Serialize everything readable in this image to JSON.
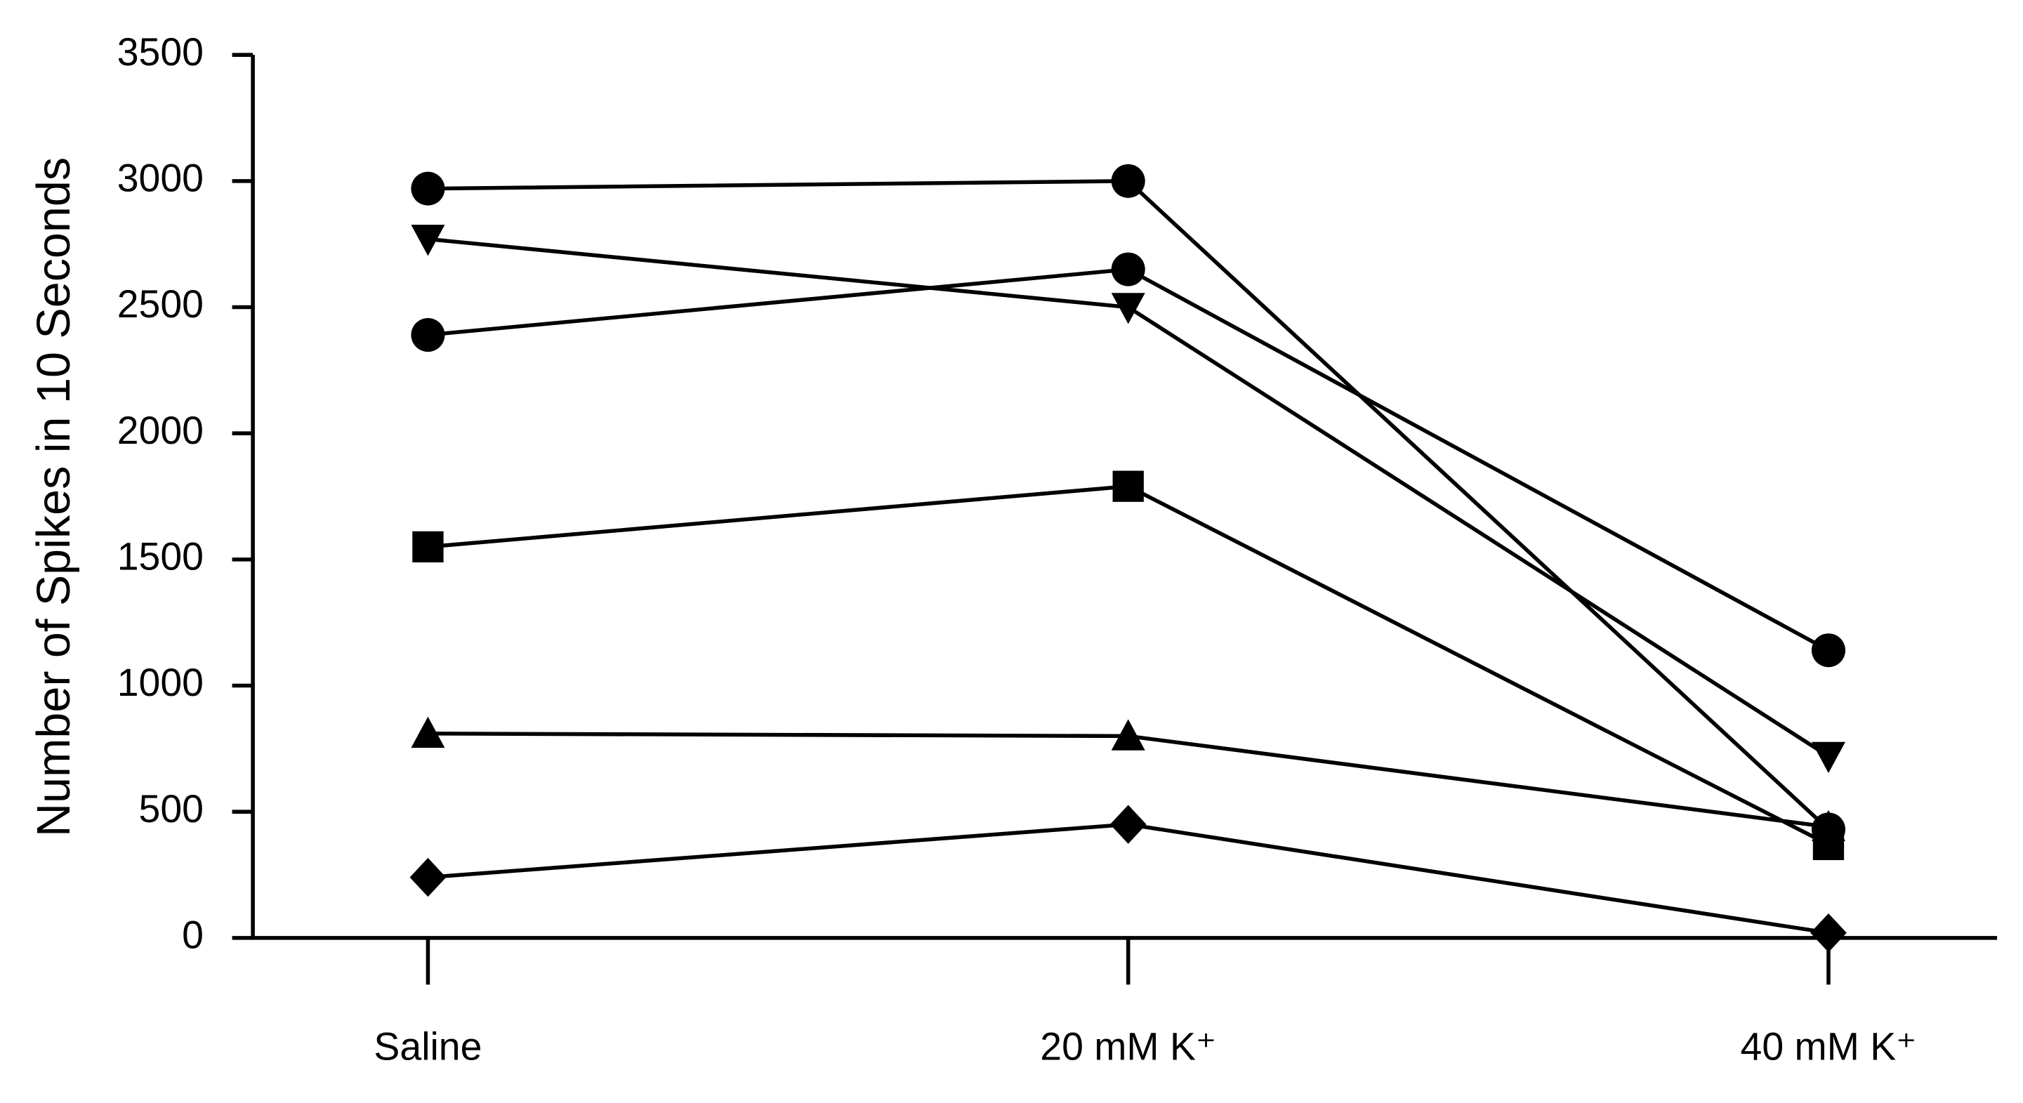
{
  "chart_data": {
    "type": "line",
    "ylabel": "Number of Spikes in 10 Seconds",
    "categories": [
      "Saline",
      "20 mM K⁺",
      "40 mM K⁺"
    ],
    "series": [
      {
        "marker": "circle",
        "color": "#000000",
        "values": [
          2970,
          3000,
          430
        ]
      },
      {
        "marker": "triangle-down",
        "color": "#000000",
        "values": [
          2770,
          2500,
          720
        ]
      },
      {
        "marker": "circle",
        "color": "#000000",
        "values": [
          2390,
          2650,
          1140
        ]
      },
      {
        "marker": "square",
        "color": "#000000",
        "values": [
          1550,
          1790,
          370
        ]
      },
      {
        "marker": "triangle-up",
        "color": "#000000",
        "values": [
          810,
          800,
          440
        ]
      },
      {
        "marker": "diamond",
        "color": "#000000",
        "values": [
          240,
          450,
          20
        ]
      }
    ],
    "ylim": [
      0,
      3500
    ],
    "yticks": [
      0,
      500,
      1000,
      1500,
      2000,
      2500,
      3000,
      3500
    ],
    "grid": false
  }
}
